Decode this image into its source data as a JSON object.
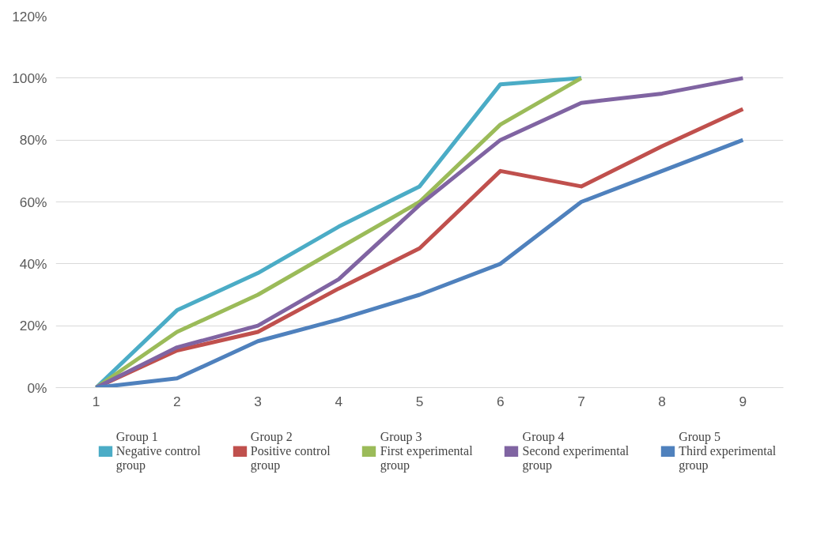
{
  "chart_data": {
    "type": "line",
    "categories": [
      "1",
      "2",
      "3",
      "4",
      "5",
      "6",
      "7",
      "8",
      "9"
    ],
    "series": [
      {
        "name": "Group 1\nNegative control\ngroup",
        "color": "#4bacc6",
        "values": [
          0,
          25,
          37,
          52,
          65,
          98,
          100,
          null,
          null
        ]
      },
      {
        "name": "Group 2\nPositive control\ngroup",
        "color": "#c0504d",
        "values": [
          0,
          12,
          18,
          32,
          45,
          70,
          65,
          78,
          90
        ]
      },
      {
        "name": "Group 3\nFirst experimental\ngroup",
        "color": "#9bbb59",
        "values": [
          0,
          18,
          30,
          45,
          60,
          85,
          100,
          null,
          null
        ]
      },
      {
        "name": "Group 4\nSecond experimental\ngroup",
        "color": "#8064a2",
        "values": [
          0,
          13,
          20,
          35,
          59,
          80,
          92,
          95,
          100
        ]
      },
      {
        "name": "Group 5\nThird experimental\ngroup",
        "color": "#4f81bd",
        "values": [
          0,
          3,
          15,
          22,
          30,
          40,
          60,
          70,
          80
        ]
      }
    ],
    "ylim": [
      0,
      120
    ],
    "yticks": [
      {
        "value": 0,
        "label": "0%"
      },
      {
        "value": 20,
        "label": "20%"
      },
      {
        "value": 40,
        "label": "40%"
      },
      {
        "value": 60,
        "label": "60%"
      },
      {
        "value": 80,
        "label": "80%"
      },
      {
        "value": 100,
        "label": "100%"
      },
      {
        "value": 120,
        "label": "120%"
      }
    ],
    "grid": "y",
    "legend": "bottom",
    "marker": "none",
    "line_style": "solid"
  }
}
